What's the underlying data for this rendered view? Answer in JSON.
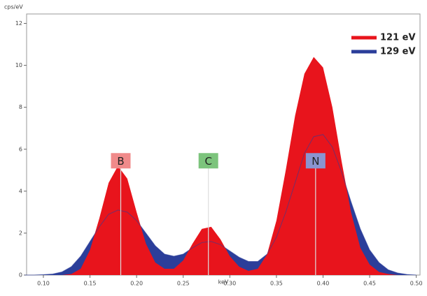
{
  "chart_data": {
    "type": "area",
    "x_label": "keV",
    "y_label": "cps/eV",
    "x": [
      0.08,
      0.09,
      0.1,
      0.11,
      0.12,
      0.13,
      0.14,
      0.15,
      0.16,
      0.17,
      0.18,
      0.19,
      0.2,
      0.21,
      0.22,
      0.23,
      0.24,
      0.25,
      0.26,
      0.27,
      0.28,
      0.29,
      0.3,
      0.31,
      0.32,
      0.33,
      0.34,
      0.35,
      0.36,
      0.37,
      0.38,
      0.39,
      0.4,
      0.41,
      0.42,
      0.43,
      0.44,
      0.45,
      0.46,
      0.47,
      0.48,
      0.49,
      0.5
    ],
    "series": [
      {
        "name": "121 eV",
        "color": "#e8141c",
        "values": [
          0,
          0,
          0,
          0,
          0,
          0.05,
          0.3,
          1.2,
          2.7,
          4.4,
          5.2,
          4.6,
          3.0,
          1.5,
          0.6,
          0.3,
          0.3,
          0.7,
          1.5,
          2.2,
          2.3,
          1.7,
          0.9,
          0.4,
          0.2,
          0.3,
          1.0,
          2.6,
          5.0,
          7.6,
          9.6,
          10.4,
          9.9,
          8.0,
          5.4,
          3.0,
          1.3,
          0.5,
          0.15,
          0.05,
          0,
          0,
          0
        ]
      },
      {
        "name": "129 eV",
        "color": "#2b3e9a",
        "values": [
          0,
          0,
          0.02,
          0.05,
          0.15,
          0.4,
          0.9,
          1.6,
          2.3,
          2.9,
          3.1,
          3.0,
          2.6,
          2.0,
          1.4,
          1.0,
          0.9,
          1.0,
          1.3,
          1.55,
          1.6,
          1.45,
          1.15,
          0.85,
          0.65,
          0.65,
          1.0,
          1.8,
          3.0,
          4.4,
          5.8,
          6.6,
          6.7,
          6.1,
          4.9,
          3.5,
          2.2,
          1.2,
          0.6,
          0.25,
          0.1,
          0.03,
          0
        ]
      }
    ],
    "xlim": [
      0.082,
      0.504
    ],
    "ylim": [
      0,
      12.45
    ],
    "xticks": [
      {
        "value": 0.1,
        "label": "0.10"
      },
      {
        "value": 0.15,
        "label": "0.15"
      },
      {
        "value": 0.2,
        "label": "0.20"
      },
      {
        "value": 0.25,
        "label": "0.25"
      },
      {
        "value": 0.3,
        "label": "0.30"
      },
      {
        "value": 0.35,
        "label": "0.35"
      },
      {
        "value": 0.4,
        "label": "0.40"
      },
      {
        "value": 0.45,
        "label": "0.45"
      },
      {
        "value": 0.5,
        "label": "0.50"
      }
    ],
    "yticks": [
      0,
      2,
      4,
      6,
      8,
      10,
      12
    ],
    "annotations": [
      {
        "text": "B",
        "x": 0.183,
        "y": 5.45,
        "color": "#f08a8a"
      },
      {
        "text": "C",
        "x": 0.277,
        "y": 5.45,
        "color": "#7cc47c"
      },
      {
        "text": "N",
        "x": 0.392,
        "y": 5.45,
        "color": "#8a94d0"
      }
    ],
    "legend": "top-right"
  }
}
